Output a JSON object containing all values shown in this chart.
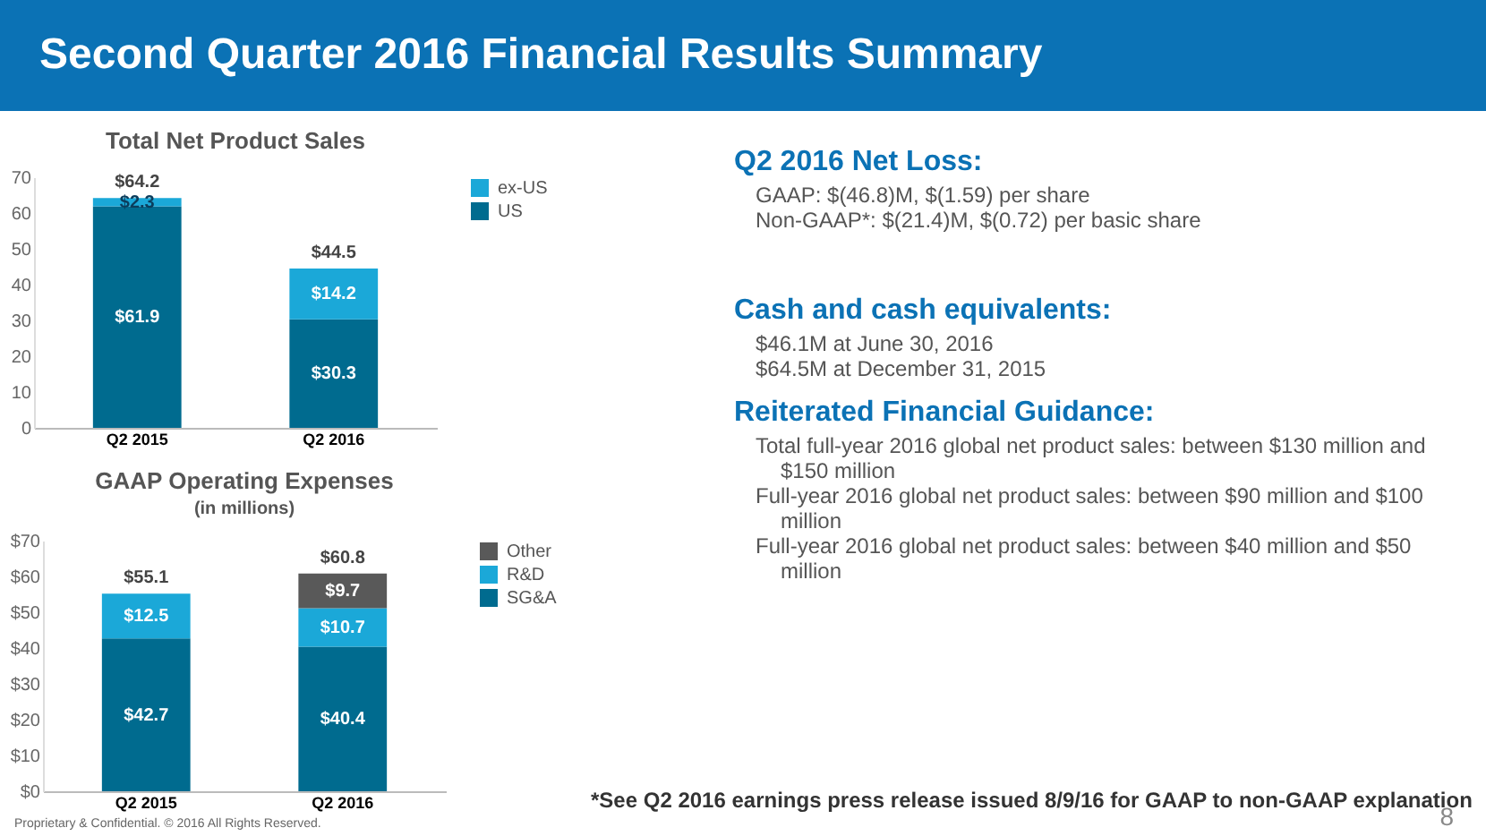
{
  "chart_data": [
    {
      "type": "other",
      "title": "Second Quarter 2016 Financial Results Summary",
      "annotations": [
        "*See Q2 2016 earnings press release issued 8/9/16 for GAAP to non-GAAP explanation",
        "Proprietary & Confidential. © 2016 All Rights Reserved.",
        "8"
      ]
    },
    {
      "type": "bar",
      "title": "Total Net Product Sales",
      "categories": [
        "Q2 2015",
        "Q2 2016"
      ],
      "stacked": true,
      "legend": "right",
      "ylim": [
        0,
        70
      ],
      "yticks": [
        0,
        10,
        20,
        30,
        40,
        50,
        60,
        70
      ],
      "series": [
        {
          "name": "US",
          "color": "#006b8f",
          "values": [
            61.9,
            30.3
          ],
          "value_labels": [
            "$61.9",
            "$30.3"
          ]
        },
        {
          "name": "ex-US",
          "color": "#1ba8d8",
          "values": [
            2.3,
            14.2
          ],
          "value_labels": [
            "$2.3",
            "$14.2"
          ]
        }
      ],
      "totals": [
        "$64.2",
        "$44.5"
      ]
    },
    {
      "type": "bar",
      "title": "GAAP Operating Expenses",
      "subtitle": "(in millions)",
      "categories": [
        "Q2 2015",
        "Q2 2016"
      ],
      "stacked": true,
      "legend": "right",
      "ylim": [
        0,
        70
      ],
      "yticks": [
        {
          "value": 0,
          "label": "$0"
        },
        {
          "value": 10,
          "label": "$10"
        },
        {
          "value": 20,
          "label": "$20"
        },
        {
          "value": 30,
          "label": "$30"
        },
        {
          "value": 40,
          "label": "$40"
        },
        {
          "value": 50,
          "label": "$50"
        },
        {
          "value": 60,
          "label": "$60"
        },
        {
          "value": 70,
          "label": "$70"
        }
      ],
      "series": [
        {
          "name": "SG&A",
          "color": "#006b8f",
          "values": [
            42.7,
            40.4
          ],
          "value_labels": [
            "$42.7",
            "$40.4"
          ]
        },
        {
          "name": "R&D",
          "color": "#1ba8d8",
          "values": [
            12.5,
            10.7
          ],
          "value_labels": [
            "$12.5",
            "$10.7"
          ]
        },
        {
          "name": "Other",
          "color": "#595959",
          "values": [
            null,
            9.7
          ],
          "value_labels": [
            null,
            "$9.7"
          ]
        }
      ],
      "totals": [
        "$55.1",
        "$60.8"
      ]
    },
    {
      "type": "other",
      "title": "Q2 2016 Net Loss:",
      "annotations": [
        "GAAP: $(46.8)M, $(1.59) per share",
        "Non-GAAP*: $(21.4)M, $(0.72) per basic share"
      ]
    },
    {
      "type": "other",
      "title": "Cash and cash equivalents:",
      "annotations": [
        "$46.1M at June 30, 2016",
        "$64.5M at December 31, 2015"
      ]
    },
    {
      "type": "other",
      "title": "Reiterated Financial Guidance:",
      "annotations": [
        "Total full-year 2016 global net product sales: between $130 million and $150 million",
        "Full-year 2016 global net product sales: between $90 million and $100 million",
        "Full-year 2016 global net product sales: between $40 million and $50 million"
      ]
    }
  ]
}
